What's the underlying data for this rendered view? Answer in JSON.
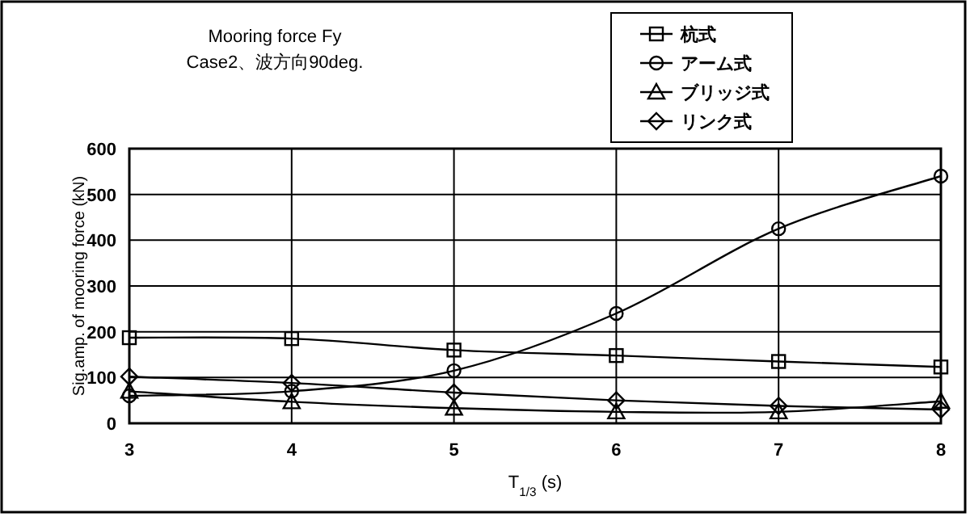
{
  "chart_data": {
    "type": "line",
    "title": "Mooring force  Fy",
    "subtitle": "Case2、波方向90deg.",
    "xlabel": "T$_{1/3}$ (s)",
    "ylabel": "Sig.amp. of mooring force (kN)",
    "x": [
      3,
      4,
      5,
      6,
      7,
      8
    ],
    "series": [
      {
        "name": "杭式",
        "color": "#000000",
        "marker": "square",
        "values": [
          187,
          185,
          160,
          148,
          135,
          123
        ]
      },
      {
        "name": "アーム式",
        "color": "#000000",
        "marker": "circle",
        "values": [
          60,
          70,
          115,
          240,
          425,
          540
        ]
      },
      {
        "name": "ブリッジ式",
        "color": "#000000",
        "marker": "triangle",
        "values": [
          70,
          47,
          33,
          25,
          25,
          48
        ]
      },
      {
        "name": "リンク式",
        "color": "#000000",
        "marker": "diamond",
        "values": [
          102,
          88,
          67,
          50,
          38,
          30
        ]
      }
    ],
    "xlim": [
      3,
      8
    ],
    "xticks": [
      3,
      4,
      5,
      6,
      7,
      8
    ],
    "ylim": [
      0,
      600
    ],
    "yticks": [
      0,
      100,
      200,
      300,
      400,
      500,
      600
    ],
    "grid": true,
    "legend": "top right",
    "line_style": "solid"
  }
}
